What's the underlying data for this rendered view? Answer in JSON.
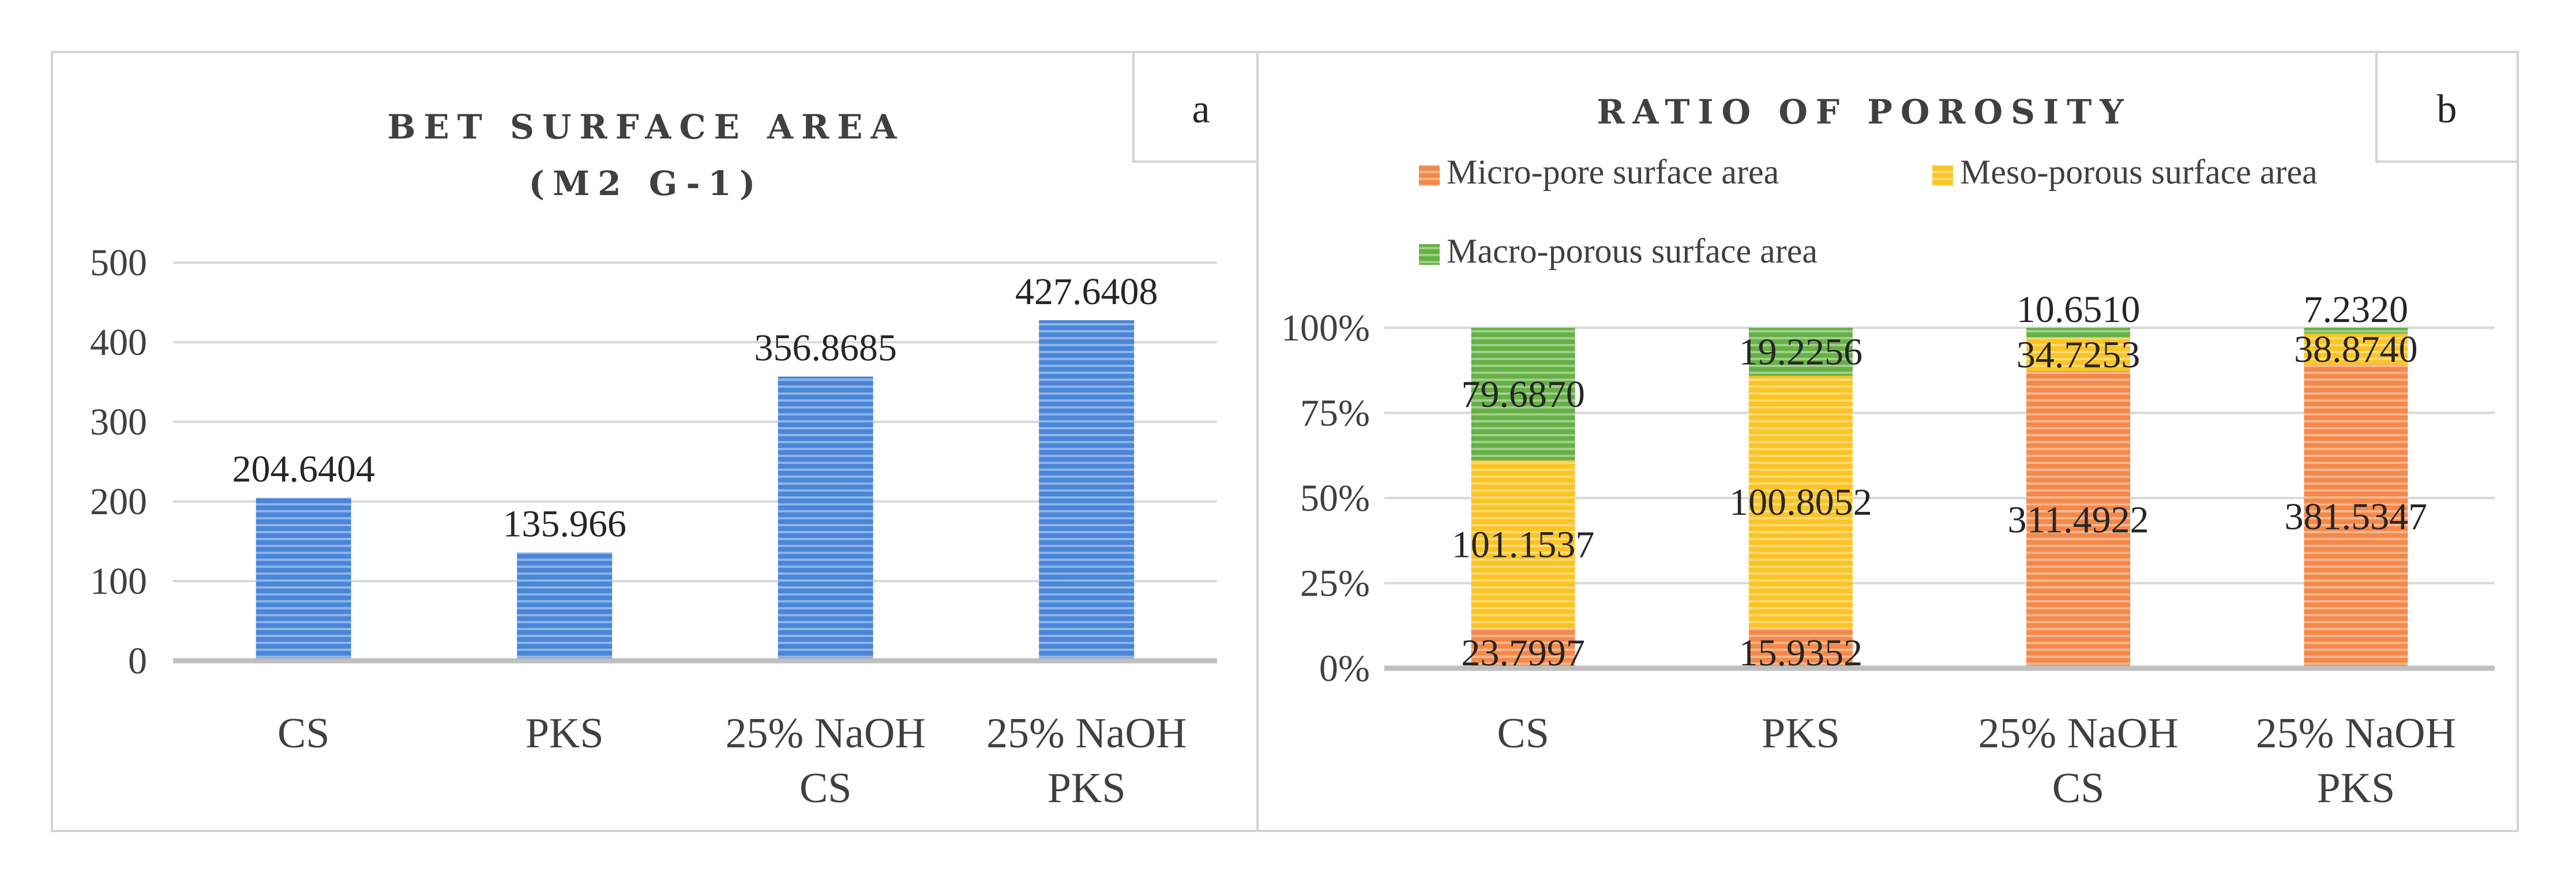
{
  "colors": {
    "bet": "#4a86d8",
    "micro": "#f4894a",
    "meso": "#fbc423",
    "macro": "#66b146",
    "grid": "#d9d9d9",
    "axis": "#bfbfbf",
    "frame": "#d4d4d4"
  },
  "chart_data": [
    {
      "panel_label": "a",
      "type": "bar",
      "title_lines": [
        "BET SURFACE AREA",
        "(M2 G-1)"
      ],
      "categories": [
        [
          "CS"
        ],
        [
          "PKS"
        ],
        [
          "25% NaOH",
          "CS"
        ],
        [
          "25% NaOH",
          "PKS"
        ]
      ],
      "values": [
        204.6404,
        135.966,
        356.8685,
        427.6408
      ],
      "value_labels": [
        "204.6404",
        "135.966",
        "356.8685",
        "427.6408"
      ],
      "ylim": [
        0,
        500
      ],
      "yticks": [
        0,
        100,
        200,
        300,
        400,
        500
      ],
      "ytick_labels": [
        "0",
        "100",
        "200",
        "300",
        "400",
        "500"
      ],
      "grid": true,
      "xlabel": "",
      "ylabel": ""
    },
    {
      "panel_label": "b",
      "type": "bar",
      "stacked": "percent",
      "title_lines": [
        "RATIO OF POROSITY"
      ],
      "categories": [
        [
          "CS"
        ],
        [
          "PKS"
        ],
        [
          "25% NaOH",
          "CS"
        ],
        [
          "25% NaOH",
          "PKS"
        ]
      ],
      "series": [
        {
          "name": "Micro-pore surface area",
          "color_key": "micro",
          "values": [
            23.7997,
            15.9352,
            311.4922,
            381.5347
          ],
          "labels": [
            "23.7997",
            "15.9352",
            "311.4922",
            "381.5347"
          ]
        },
        {
          "name": "Meso-porous surface area",
          "color_key": "meso",
          "values": [
            101.1537,
            100.8052,
            34.7253,
            38.874
          ],
          "labels": [
            "101.1537",
            "100.8052",
            "34.7253",
            "38.8740"
          ]
        },
        {
          "name": "Macro-porous surface area",
          "color_key": "macro",
          "values": [
            79.687,
            19.2256,
            10.651,
            7.232
          ],
          "labels": [
            "79.6870",
            "19.2256",
            "10.6510",
            "7.2320"
          ]
        }
      ],
      "ylim": [
        0,
        100
      ],
      "yticks": [
        0,
        25,
        50,
        75,
        100
      ],
      "ytick_labels": [
        "0%",
        "25%",
        "50%",
        "75%",
        "100%"
      ],
      "legend": "top",
      "grid": true,
      "xlabel": "",
      "ylabel": ""
    }
  ]
}
